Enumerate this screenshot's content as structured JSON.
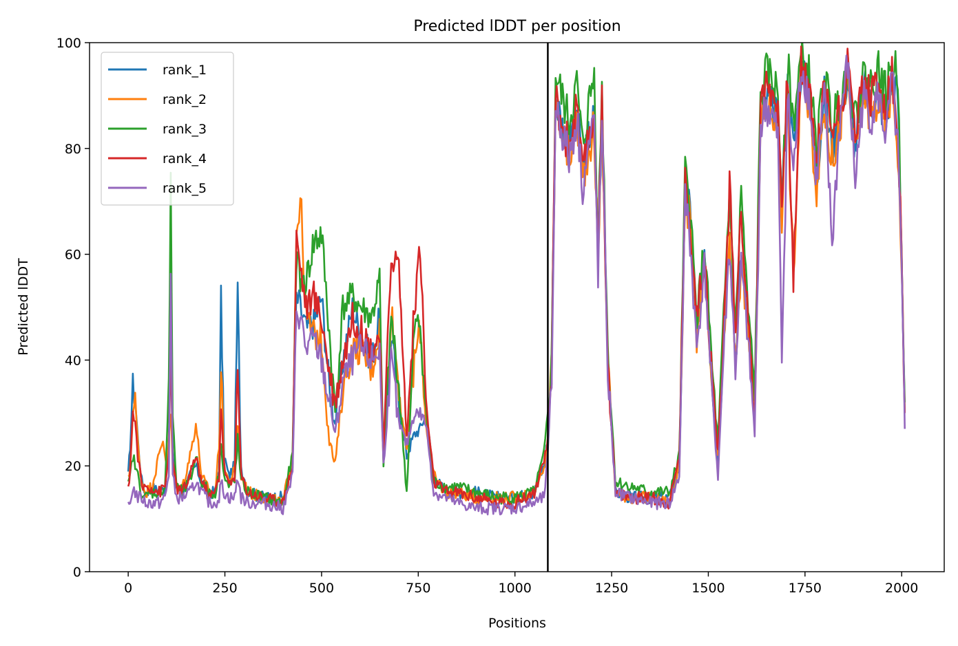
{
  "chart_data": {
    "type": "line",
    "title": "Predicted lDDT per position",
    "xlabel": "Positions",
    "ylabel": "Predicted lDDT",
    "xlim": [
      -100,
      2110
    ],
    "ylim": [
      0,
      100
    ],
    "xticks": [
      0,
      250,
      500,
      750,
      1000,
      1250,
      1500,
      1750,
      2000
    ],
    "yticks": [
      0,
      20,
      40,
      60,
      80,
      100
    ],
    "grid": false,
    "legend_position": "top-left",
    "vertical_line_x": 1085,
    "series": [
      {
        "name": "rank_1",
        "color": "#1f77b4",
        "x": [
          0,
          5,
          12,
          18,
          25,
          35,
          45,
          60,
          80,
          95,
          105,
          110,
          115,
          125,
          140,
          160,
          175,
          190,
          210,
          225,
          235,
          240,
          248,
          260,
          275,
          283,
          292,
          310,
          350,
          400,
          425,
          435,
          445,
          460,
          480,
          500,
          520,
          535,
          555,
          580,
          600,
          630,
          650,
          660,
          680,
          700,
          720,
          740,
          755,
          770,
          790,
          820,
          850,
          900,
          950,
          1000,
          1050,
          1075,
          1085,
          1095,
          1105,
          1120,
          1140,
          1160,
          1175,
          1190,
          1205,
          1215,
          1225,
          1240,
          1260,
          1300,
          1350,
          1400,
          1425,
          1440,
          1450,
          1470,
          1490,
          1510,
          1525,
          1540,
          1555,
          1570,
          1585,
          1600,
          1620,
          1635,
          1650,
          1665,
          1680,
          1690,
          1705,
          1720,
          1740,
          1760,
          1780,
          1800,
          1820,
          1840,
          1860,
          1880,
          1900,
          1920,
          1940,
          1960,
          1975,
          1990,
          2000,
          2008
        ],
        "y": [
          18,
          24,
          35,
          33,
          25,
          17,
          15,
          16,
          15,
          16,
          24,
          45,
          22,
          16,
          15,
          18,
          20,
          17,
          15,
          15,
          20,
          52,
          22,
          18,
          20,
          53,
          20,
          15,
          14,
          14,
          20,
          52,
          50,
          46,
          47,
          52,
          35,
          28,
          40,
          50,
          45,
          40,
          48,
          20,
          45,
          32,
          22,
          26,
          27,
          30,
          18,
          15,
          15,
          15,
          14,
          14,
          15,
          20,
          25,
          40,
          90,
          85,
          80,
          88,
          75,
          82,
          86,
          60,
          87,
          40,
          15,
          14,
          14,
          14,
          20,
          72,
          70,
          45,
          60,
          35,
          20,
          45,
          65,
          40,
          60,
          50,
          30,
          85,
          89,
          88,
          85,
          70,
          92,
          80,
          95,
          90,
          75,
          90,
          80,
          85,
          94,
          80,
          92,
          88,
          90,
          85,
          94,
          90,
          60,
          30
        ]
      },
      {
        "name": "rank_2",
        "color": "#ff7f0e",
        "x": [
          0,
          5,
          12,
          18,
          25,
          35,
          45,
          60,
          80,
          90,
          100,
          110,
          115,
          125,
          140,
          160,
          175,
          190,
          210,
          225,
          235,
          240,
          248,
          260,
          275,
          283,
          292,
          310,
          350,
          400,
          425,
          435,
          445,
          460,
          480,
          500,
          520,
          535,
          555,
          580,
          600,
          630,
          650,
          660,
          680,
          700,
          720,
          740,
          755,
          770,
          790,
          820,
          850,
          900,
          950,
          1000,
          1050,
          1075,
          1085,
          1095,
          1105,
          1120,
          1140,
          1160,
          1175,
          1190,
          1205,
          1215,
          1225,
          1240,
          1260,
          1300,
          1350,
          1400,
          1425,
          1440,
          1450,
          1470,
          1490,
          1510,
          1525,
          1540,
          1555,
          1570,
          1585,
          1600,
          1620,
          1635,
          1650,
          1665,
          1680,
          1690,
          1705,
          1720,
          1740,
          1760,
          1780,
          1800,
          1820,
          1840,
          1860,
          1880,
          1900,
          1920,
          1940,
          1960,
          1975,
          1990,
          2000,
          2008
        ],
        "y": [
          17,
          20,
          30,
          32,
          24,
          17,
          15,
          16,
          22,
          25,
          20,
          30,
          20,
          16,
          16,
          22,
          28,
          18,
          15,
          15,
          24,
          39,
          20,
          17,
          19,
          28,
          18,
          15,
          14,
          13,
          22,
          65,
          71,
          48,
          45,
          44,
          25,
          20,
          35,
          42,
          42,
          38,
          46,
          20,
          50,
          35,
          22,
          40,
          46,
          28,
          18,
          15,
          15,
          14,
          14,
          14,
          15,
          19,
          24,
          40,
          88,
          84,
          78,
          86,
          74,
          80,
          84,
          58,
          86,
          40,
          15,
          14,
          14,
          13,
          20,
          70,
          68,
          44,
          58,
          34,
          22,
          44,
          62,
          40,
          58,
          48,
          30,
          84,
          88,
          87,
          84,
          68,
          90,
          55,
          95,
          88,
          73,
          88,
          78,
          84,
          93,
          78,
          91,
          86,
          89,
          84,
          93,
          80,
          58,
          30
        ]
      },
      {
        "name": "rank_3",
        "color": "#2ca02c",
        "x": [
          0,
          5,
          12,
          18,
          25,
          35,
          45,
          60,
          80,
          95,
          105,
          110,
          115,
          125,
          140,
          160,
          175,
          190,
          210,
          225,
          235,
          240,
          248,
          260,
          275,
          283,
          292,
          310,
          350,
          400,
          425,
          435,
          445,
          460,
          480,
          500,
          520,
          535,
          555,
          580,
          600,
          630,
          650,
          660,
          680,
          700,
          720,
          740,
          755,
          770,
          790,
          820,
          850,
          900,
          950,
          1000,
          1050,
          1075,
          1085,
          1095,
          1105,
          1120,
          1140,
          1160,
          1175,
          1190,
          1205,
          1215,
          1225,
          1240,
          1260,
          1300,
          1350,
          1400,
          1425,
          1440,
          1450,
          1470,
          1490,
          1510,
          1525,
          1540,
          1555,
          1570,
          1585,
          1600,
          1620,
          1635,
          1650,
          1665,
          1680,
          1690,
          1705,
          1720,
          1740,
          1760,
          1780,
          1800,
          1820,
          1840,
          1860,
          1880,
          1900,
          1920,
          1940,
          1960,
          1975,
          1990,
          2000,
          2008
        ],
        "y": [
          16,
          18,
          22,
          20,
          18,
          15,
          14,
          15,
          15,
          16,
          35,
          72,
          30,
          16,
          15,
          17,
          22,
          17,
          15,
          15,
          18,
          25,
          18,
          16,
          17,
          25,
          17,
          15,
          14,
          13,
          22,
          60,
          55,
          55,
          62,
          64,
          45,
          30,
          50,
          52,
          50,
          48,
          55,
          19,
          48,
          35,
          15,
          46,
          47,
          30,
          17,
          16,
          16,
          15,
          14,
          14,
          15,
          22,
          30,
          40,
          94,
          90,
          85,
          92,
          80,
          88,
          94,
          62,
          92,
          42,
          17,
          16,
          15,
          15,
          22,
          75,
          72,
          48,
          62,
          38,
          24,
          48,
          72,
          45,
          72,
          52,
          34,
          90,
          94,
          93,
          90,
          72,
          96,
          85,
          97,
          94,
          80,
          94,
          85,
          90,
          96,
          85,
          94,
          92,
          95,
          90,
          96,
          94,
          62,
          32
        ]
      },
      {
        "name": "rank_4",
        "color": "#d62728",
        "x": [
          0,
          5,
          12,
          18,
          25,
          35,
          45,
          60,
          80,
          95,
          105,
          110,
          115,
          125,
          140,
          160,
          175,
          190,
          210,
          225,
          235,
          240,
          248,
          260,
          275,
          283,
          292,
          310,
          350,
          400,
          425,
          435,
          445,
          460,
          480,
          500,
          520,
          535,
          555,
          580,
          600,
          630,
          650,
          660,
          680,
          700,
          720,
          740,
          755,
          770,
          790,
          820,
          850,
          900,
          950,
          1000,
          1050,
          1075,
          1085,
          1095,
          1105,
          1120,
          1140,
          1160,
          1175,
          1190,
          1205,
          1215,
          1225,
          1240,
          1260,
          1300,
          1350,
          1400,
          1425,
          1440,
          1450,
          1470,
          1490,
          1510,
          1525,
          1540,
          1555,
          1570,
          1585,
          1600,
          1620,
          1635,
          1650,
          1665,
          1680,
          1690,
          1705,
          1720,
          1740,
          1760,
          1780,
          1800,
          1820,
          1840,
          1860,
          1880,
          1900,
          1920,
          1940,
          1960,
          1975,
          1990,
          2000,
          2008
        ],
        "y": [
          15,
          20,
          30,
          28,
          22,
          16,
          16,
          16,
          15,
          16,
          22,
          45,
          20,
          16,
          15,
          18,
          22,
          17,
          14,
          15,
          18,
          32,
          20,
          16,
          18,
          38,
          18,
          15,
          14,
          13,
          20,
          63,
          58,
          50,
          52,
          48,
          38,
          32,
          40,
          48,
          46,
          42,
          45,
          22,
          60,
          58,
          25,
          50,
          62,
          32,
          17,
          15,
          15,
          14,
          13,
          13,
          15,
          20,
          25,
          38,
          90,
          85,
          80,
          88,
          74,
          82,
          86,
          60,
          88,
          40,
          15,
          14,
          14,
          13,
          22,
          73,
          70,
          48,
          60,
          36,
          22,
          46,
          73,
          45,
          70,
          50,
          30,
          88,
          92,
          91,
          88,
          70,
          94,
          55,
          96,
          92,
          78,
          92,
          84,
          88,
          95,
          84,
          93,
          90,
          92,
          88,
          94,
          82,
          60,
          30
        ]
      },
      {
        "name": "rank_5",
        "color": "#9467bd",
        "x": [
          0,
          5,
          12,
          18,
          25,
          35,
          45,
          60,
          80,
          95,
          105,
          110,
          115,
          125,
          140,
          160,
          175,
          190,
          210,
          225,
          235,
          240,
          248,
          260,
          275,
          283,
          292,
          310,
          350,
          400,
          425,
          435,
          445,
          460,
          480,
          500,
          520,
          535,
          555,
          580,
          600,
          630,
          650,
          660,
          680,
          700,
          720,
          740,
          755,
          770,
          790,
          820,
          850,
          900,
          950,
          1000,
          1050,
          1075,
          1085,
          1095,
          1105,
          1120,
          1140,
          1160,
          1175,
          1190,
          1205,
          1215,
          1225,
          1240,
          1260,
          1300,
          1350,
          1400,
          1425,
          1440,
          1450,
          1470,
          1490,
          1510,
          1525,
          1540,
          1555,
          1570,
          1585,
          1600,
          1620,
          1635,
          1650,
          1665,
          1680,
          1690,
          1705,
          1720,
          1740,
          1760,
          1780,
          1800,
          1820,
          1840,
          1860,
          1880,
          1900,
          1920,
          1940,
          1960,
          1975,
          1990,
          2000,
          2008
        ],
        "y": [
          12,
          13,
          16,
          15,
          14,
          14,
          13,
          13,
          13,
          14,
          18,
          58,
          18,
          14,
          14,
          15,
          17,
          15,
          13,
          13,
          14,
          17,
          15,
          14,
          14,
          18,
          14,
          13,
          13,
          12,
          18,
          50,
          48,
          42,
          44,
          40,
          32,
          26,
          36,
          40,
          42,
          40,
          42,
          20,
          40,
          28,
          24,
          30,
          30,
          28,
          15,
          14,
          13,
          12,
          12,
          12,
          13,
          14,
          22,
          36,
          88,
          84,
          78,
          86,
          73,
          80,
          85,
          56,
          86,
          38,
          15,
          14,
          13,
          13,
          18,
          70,
          66,
          42,
          58,
          33,
          18,
          42,
          62,
          38,
          58,
          46,
          26,
          84,
          88,
          86,
          82,
          40,
          90,
          75,
          96,
          90,
          74,
          90,
          62,
          85,
          96,
          74,
          90,
          86,
          90,
          82,
          93,
          80,
          56,
          27
        ]
      }
    ]
  }
}
